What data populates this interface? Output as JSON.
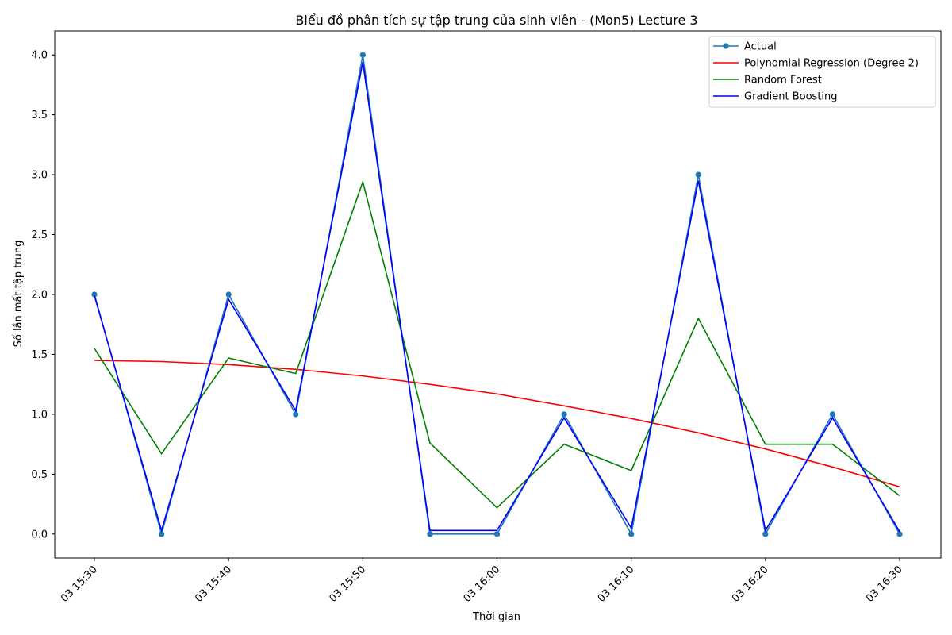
{
  "chart_data": {
    "type": "line",
    "title": "Biểu đồ phân tích sự tập trung của sinh viên - (Mon5) Lecture 3",
    "xlabel": "Thời gian",
    "ylabel": "Số lần mất tập trung",
    "x": [
      "03 15:30",
      "03 15:35",
      "03 15:40",
      "03 15:45",
      "03 15:50",
      "03 15:55",
      "03 16:00",
      "03 16:05",
      "03 16:10",
      "03 16:15",
      "03 16:20",
      "03 16:25",
      "03 16:30"
    ],
    "x_ticks": [
      "03 15:30",
      "03 15:40",
      "03 15:50",
      "03 16:00",
      "03 16:10",
      "03 16:20",
      "03 16:30"
    ],
    "x_tick_indices": [
      0,
      2,
      4,
      6,
      8,
      10,
      12
    ],
    "ylim": [
      -0.2,
      4.2
    ],
    "y_ticks": [
      0.0,
      0.5,
      1.0,
      1.5,
      2.0,
      2.5,
      3.0,
      3.5,
      4.0
    ],
    "y_tick_labels": [
      "0.0",
      "0.5",
      "1.0",
      "1.5",
      "2.0",
      "2.5",
      "3.0",
      "3.5",
      "4.0"
    ],
    "grid": false,
    "legend_position": "top-right",
    "series": [
      {
        "name": "Actual",
        "color": "#1f77b4",
        "marker": "circle",
        "values": [
          2,
          0,
          2,
          1,
          4,
          0,
          0,
          1,
          0,
          3,
          0,
          1,
          0
        ]
      },
      {
        "name": "Polynomial Regression (Degree 2)",
        "color": "#ff0000",
        "marker": "none",
        "values": [
          1.45,
          1.44,
          1.415,
          1.375,
          1.32,
          1.25,
          1.17,
          1.07,
          0.965,
          0.845,
          0.71,
          0.56,
          0.395
        ]
      },
      {
        "name": "Random Forest",
        "color": "#008000",
        "marker": "none",
        "values": [
          1.55,
          0.67,
          1.47,
          1.34,
          2.94,
          0.76,
          0.22,
          0.75,
          0.53,
          1.8,
          0.75,
          0.75,
          0.32
        ]
      },
      {
        "name": "Gradient Boosting",
        "color": "#0000ff",
        "marker": "none",
        "values": [
          1.99,
          0.03,
          1.96,
          1.03,
          3.94,
          0.03,
          0.03,
          0.97,
          0.05,
          2.95,
          0.03,
          0.97,
          0.02
        ]
      }
    ]
  }
}
